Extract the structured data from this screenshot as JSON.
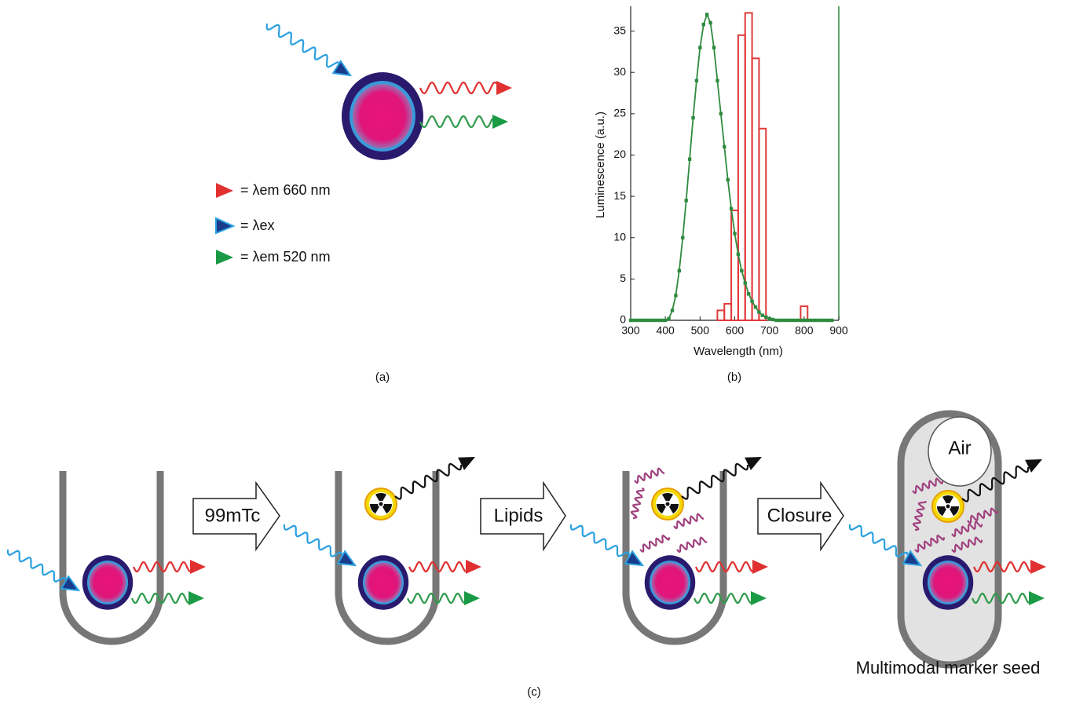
{
  "chart_data": [
    {
      "type": "histogram",
      "xlabel": "Wavelength (nm)",
      "ylabel": "Luminescence (a.u.)",
      "xlim": [
        300,
        900
      ],
      "xticks": [
        300,
        400,
        500,
        600,
        700,
        800,
        900
      ],
      "ylim": [
        0,
        38
      ],
      "yticks": [
        0,
        5,
        10,
        15,
        20,
        25,
        30,
        35
      ],
      "bins": [
        550,
        570,
        590,
        610,
        630,
        650,
        670,
        690,
        710,
        730,
        750,
        770,
        790,
        810
      ],
      "values": [
        1.2,
        2,
        13.3,
        34.5,
        37.2,
        31.7,
        23.2,
        0,
        0,
        0,
        0,
        0,
        1.7
      ],
      "color": "#e03a3a"
    },
    {
      "type": "line",
      "color": "#2e8b3e",
      "x": [
        300,
        310,
        320,
        330,
        340,
        350,
        360,
        370,
        380,
        390,
        400,
        410,
        420,
        430,
        440,
        450,
        460,
        470,
        480,
        490,
        500,
        510,
        520,
        530,
        540,
        550,
        560,
        570,
        580,
        590,
        600,
        610,
        620,
        630,
        640,
        650,
        660,
        670,
        680,
        690,
        700,
        710,
        720,
        730,
        740,
        750,
        760,
        770,
        780,
        790,
        800,
        810,
        820,
        830,
        840,
        850,
        860,
        870,
        880
      ],
      "values": [
        0,
        0,
        0,
        0,
        0,
        0,
        0,
        0,
        0,
        0,
        0,
        0.2,
        1.2,
        3,
        6,
        10,
        14.5,
        19.5,
        24.5,
        29,
        33,
        35.8,
        37,
        36,
        33,
        29,
        25,
        21,
        17,
        13.5,
        10.5,
        8,
        6,
        4.5,
        3.2,
        2.3,
        1.6,
        1,
        0.6,
        0.4,
        0.2,
        0.1,
        0,
        0,
        0,
        0,
        0,
        0,
        0,
        0,
        0,
        0,
        0,
        0,
        0,
        0,
        0,
        0,
        0
      ]
    }
  ],
  "diagram": {
    "legend": [
      "= λem 660 nm",
      "= λex",
      "= λem 520 nm"
    ],
    "panel_labels": [
      "(a)",
      "(b)",
      "(c)"
    ],
    "steps": [
      "99mTc",
      "Lipids",
      "Closure"
    ],
    "air": "Air",
    "caption": "Multimodal marker seed"
  }
}
